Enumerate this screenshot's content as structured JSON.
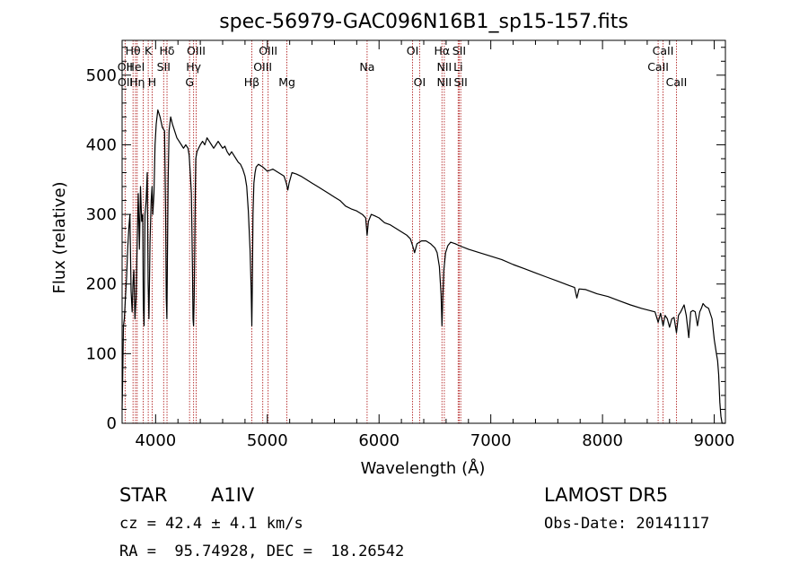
{
  "chart_data": {
    "type": "line",
    "title": "spec-56979-GAC096N16B1_sp15-157.fits",
    "xlabel": "Wavelength (Å)",
    "ylabel": "Flux (relative)",
    "xlim": [
      3700,
      9100
    ],
    "ylim": [
      0,
      550
    ],
    "xticks": [
      4000,
      5000,
      6000,
      7000,
      8000,
      9000
    ],
    "yticks": [
      0,
      100,
      200,
      300,
      400,
      500
    ],
    "grid": false,
    "line_color": "#000000",
    "marker_color": "#b22222",
    "series": [
      {
        "x": [
          3700,
          3705,
          3712,
          3720,
          3730,
          3740,
          3750,
          3760,
          3770,
          3780,
          3790,
          3797,
          3805,
          3815,
          3825,
          3835,
          3845,
          3855,
          3865,
          3875,
          3885,
          3890,
          3897,
          3905,
          3915,
          3925,
          3933,
          3940,
          3950,
          3960,
          3968,
          3975,
          3985,
          3995,
          4005,
          4020,
          4040,
          4060,
          4080,
          4090,
          4095,
          4101,
          4106,
          4112,
          4120,
          4135,
          4150,
          4170,
          4190,
          4210,
          4230,
          4250,
          4270,
          4290,
          4300,
          4310,
          4320,
          4330,
          4335,
          4340,
          4345,
          4350,
          4355,
          4360,
          4370,
          4385,
          4400,
          4420,
          4440,
          4460,
          4480,
          4500,
          4520,
          4540,
          4560,
          4580,
          4600,
          4620,
          4640,
          4660,
          4680,
          4700,
          4720,
          4740,
          4760,
          4780,
          4800,
          4815,
          4830,
          4845,
          4855,
          4861,
          4866,
          4872,
          4880,
          4890,
          4900,
          4920,
          4940,
          4960,
          4980,
          5000,
          5050,
          5100,
          5150,
          5170,
          5183,
          5195,
          5220,
          5260,
          5300,
          5350,
          5400,
          5450,
          5500,
          5550,
          5600,
          5650,
          5700,
          5750,
          5800,
          5850,
          5880,
          5893,
          5905,
          5930,
          5960,
          6000,
          6050,
          6100,
          6150,
          6200,
          6250,
          6280,
          6300,
          6318,
          6340,
          6380,
          6420,
          6460,
          6500,
          6520,
          6540,
          6555,
          6563,
          6570,
          6580,
          6595,
          6615,
          6640,
          6680,
          6720,
          6800,
          6900,
          7000,
          7100,
          7200,
          7300,
          7400,
          7500,
          7600,
          7700,
          7750,
          7770,
          7790,
          7850,
          7950,
          8050,
          8150,
          8250,
          8350,
          8420,
          8470,
          8498,
          8520,
          8542,
          8560,
          8580,
          8600,
          8620,
          8640,
          8662,
          8680,
          8700,
          8730,
          8750,
          8772,
          8790,
          8810,
          8830,
          8850,
          8870,
          8885,
          8900,
          8920,
          8950,
          8980,
          9000,
          9010,
          9020,
          9030,
          9040,
          9050,
          9060,
          9070,
          9080,
          9090,
          9100
        ],
        "y": [
          20,
          60,
          140,
          150,
          180,
          210,
          250,
          280,
          300,
          190,
          160,
          200,
          220,
          150,
          180,
          260,
          330,
          250,
          340,
          290,
          300,
          170,
          140,
          300,
          320,
          360,
          200,
          150,
          260,
          320,
          340,
          300,
          330,
          400,
          430,
          450,
          440,
          425,
          420,
          300,
          180,
          150,
          240,
          350,
          420,
          440,
          430,
          420,
          410,
          405,
          400,
          395,
          400,
          395,
          385,
          360,
          330,
          220,
          150,
          140,
          180,
          250,
          330,
          380,
          390,
          395,
          400,
          405,
          400,
          410,
          405,
          400,
          395,
          400,
          405,
          400,
          395,
          398,
          390,
          385,
          390,
          385,
          380,
          375,
          372,
          365,
          355,
          340,
          305,
          250,
          195,
          140,
          200,
          300,
          345,
          360,
          368,
          372,
          370,
          368,
          365,
          362,
          365,
          360,
          355,
          345,
          335,
          345,
          360,
          358,
          355,
          350,
          345,
          340,
          335,
          330,
          325,
          320,
          312,
          308,
          305,
          300,
          295,
          270,
          290,
          300,
          298,
          295,
          288,
          285,
          280,
          275,
          270,
          265,
          255,
          245,
          258,
          262,
          262,
          258,
          252,
          245,
          225,
          185,
          140,
          180,
          220,
          245,
          255,
          260,
          258,
          255,
          250,
          245,
          240,
          235,
          228,
          222,
          216,
          210,
          204,
          198,
          195,
          180,
          193,
          192,
          186,
          182,
          176,
          170,
          165,
          162,
          160,
          145,
          158,
          140,
          155,
          150,
          138,
          150,
          152,
          130,
          155,
          160,
          170,
          155,
          123,
          160,
          162,
          160,
          140,
          160,
          165,
          172,
          168,
          165,
          150,
          120,
          110,
          100,
          90,
          70,
          30,
          10,
          0,
          0,
          0,
          0
        ]
      }
    ],
    "annotations": [
      {
        "text": "Hθ",
        "x": 3798,
        "row": 1
      },
      {
        "text": "OII",
        "x": 3727,
        "row": 2
      },
      {
        "text": "OII",
        "x": 3729,
        "row": 3
      },
      {
        "text": "HeI",
        "x": 3820,
        "row": 2
      },
      {
        "text": "Hη",
        "x": 3835,
        "row": 3
      },
      {
        "text": "K",
        "x": 3934,
        "row": 1
      },
      {
        "text": "H",
        "x": 3969,
        "row": 3
      },
      {
        "text": "Hδ",
        "x": 4102,
        "row": 1
      },
      {
        "text": "SII",
        "x": 4072,
        "row": 2
      },
      {
        "text": "OIII",
        "x": 4363,
        "row": 1
      },
      {
        "text": "Hγ",
        "x": 4340,
        "row": 2
      },
      {
        "text": "G",
        "x": 4304,
        "row": 3
      },
      {
        "text": "OIII",
        "x": 5007,
        "row": 1
      },
      {
        "text": "OIII",
        "x": 4959,
        "row": 2
      },
      {
        "text": "Hβ",
        "x": 4861,
        "row": 3
      },
      {
        "text": "Mg",
        "x": 5175,
        "row": 3
      },
      {
        "text": "Na",
        "x": 5893,
        "row": 2
      },
      {
        "text": "OI",
        "x": 6300,
        "row": 1
      },
      {
        "text": "OI",
        "x": 6363,
        "row": 3
      },
      {
        "text": "Hα",
        "x": 6563,
        "row": 1
      },
      {
        "text": "NII",
        "x": 6584,
        "row": 2
      },
      {
        "text": "NII",
        "x": 6584,
        "row": 3
      },
      {
        "text": "SII",
        "x": 6717,
        "row": 1
      },
      {
        "text": "Li",
        "x": 6708,
        "row": 2
      },
      {
        "text": "SII",
        "x": 6731,
        "row": 3
      },
      {
        "text": "CaII",
        "x": 8542,
        "row": 1
      },
      {
        "text": "CaII",
        "x": 8498,
        "row": 2
      },
      {
        "text": "CaII",
        "x": 8662,
        "row": 3
      }
    ],
    "lines": [
      3727,
      3798,
      3820,
      3835,
      3889,
      3934,
      3969,
      4072,
      4102,
      4304,
      4340,
      4363,
      4861,
      4959,
      5007,
      5175,
      5893,
      6300,
      6363,
      6563,
      6584,
      6708,
      6717,
      6731,
      8498,
      8542,
      8662
    ]
  },
  "info": {
    "object_class": "STAR",
    "subclass": "A1IV",
    "survey": "LAMOST DR5",
    "cz": "cz = 42.4 ± 4.1 km/s",
    "obs_date": "Obs-Date: 20141117",
    "coords": "RA =  95.74928, DEC =  18.26542"
  }
}
